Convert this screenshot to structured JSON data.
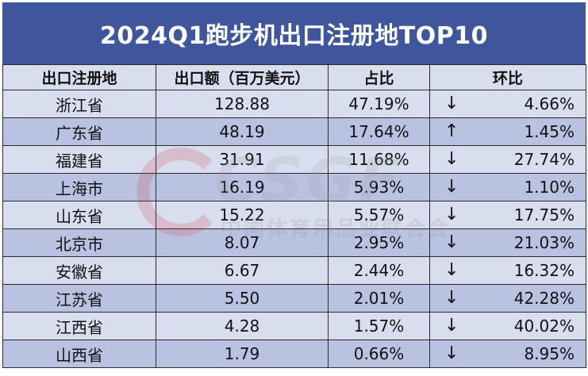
{
  "title": "2024Q1跑步机出口注册地TOP10",
  "headers": [
    "出口注册地",
    "出口额（百万美元）",
    "占比",
    "环比"
  ],
  "rows": [
    {
      "region": "浙江省",
      "amount": "128.88",
      "share": "47.19%",
      "trend": "down",
      "trend_icon": "↓",
      "wow": "4.66%"
    },
    {
      "region": "广东省",
      "amount": "48.19",
      "share": "17.64%",
      "trend": "up",
      "trend_icon": "↑",
      "wow": "1.45%"
    },
    {
      "region": "福建省",
      "amount": "31.91",
      "share": "11.68%",
      "trend": "down",
      "trend_icon": "↓",
      "wow": "27.74%"
    },
    {
      "region": "上海市",
      "amount": "16.19",
      "share": "5.93%",
      "trend": "down",
      "trend_icon": "↓",
      "wow": "1.10%"
    },
    {
      "region": "山东省",
      "amount": "15.22",
      "share": "5.57%",
      "trend": "down",
      "trend_icon": "↓",
      "wow": "17.75%"
    },
    {
      "region": "北京市",
      "amount": "8.07",
      "share": "2.95%",
      "trend": "down",
      "trend_icon": "↓",
      "wow": "21.03%"
    },
    {
      "region": "安徽省",
      "amount": "6.67",
      "share": "2.44%",
      "trend": "down",
      "trend_icon": "↓",
      "wow": "16.32%"
    },
    {
      "region": "江苏省",
      "amount": "5.50",
      "share": "2.01%",
      "trend": "down",
      "trend_icon": "↓",
      "wow": "42.28%"
    },
    {
      "region": "江西省",
      "amount": "4.28",
      "share": "1.57%",
      "trend": "down",
      "trend_icon": "↓",
      "wow": "40.02%"
    },
    {
      "region": "山西省",
      "amount": "1.79",
      "share": "0.66%",
      "trend": "down",
      "trend_icon": "↓",
      "wow": "8.95%"
    }
  ],
  "watermark": {
    "logo_text": "CSGF",
    "org_name": "中国体育用品业联合会"
  },
  "colors": {
    "title_bg": "#3F569C",
    "row_light": "#D9DEEF",
    "row_dark": "#BAC2E2"
  }
}
